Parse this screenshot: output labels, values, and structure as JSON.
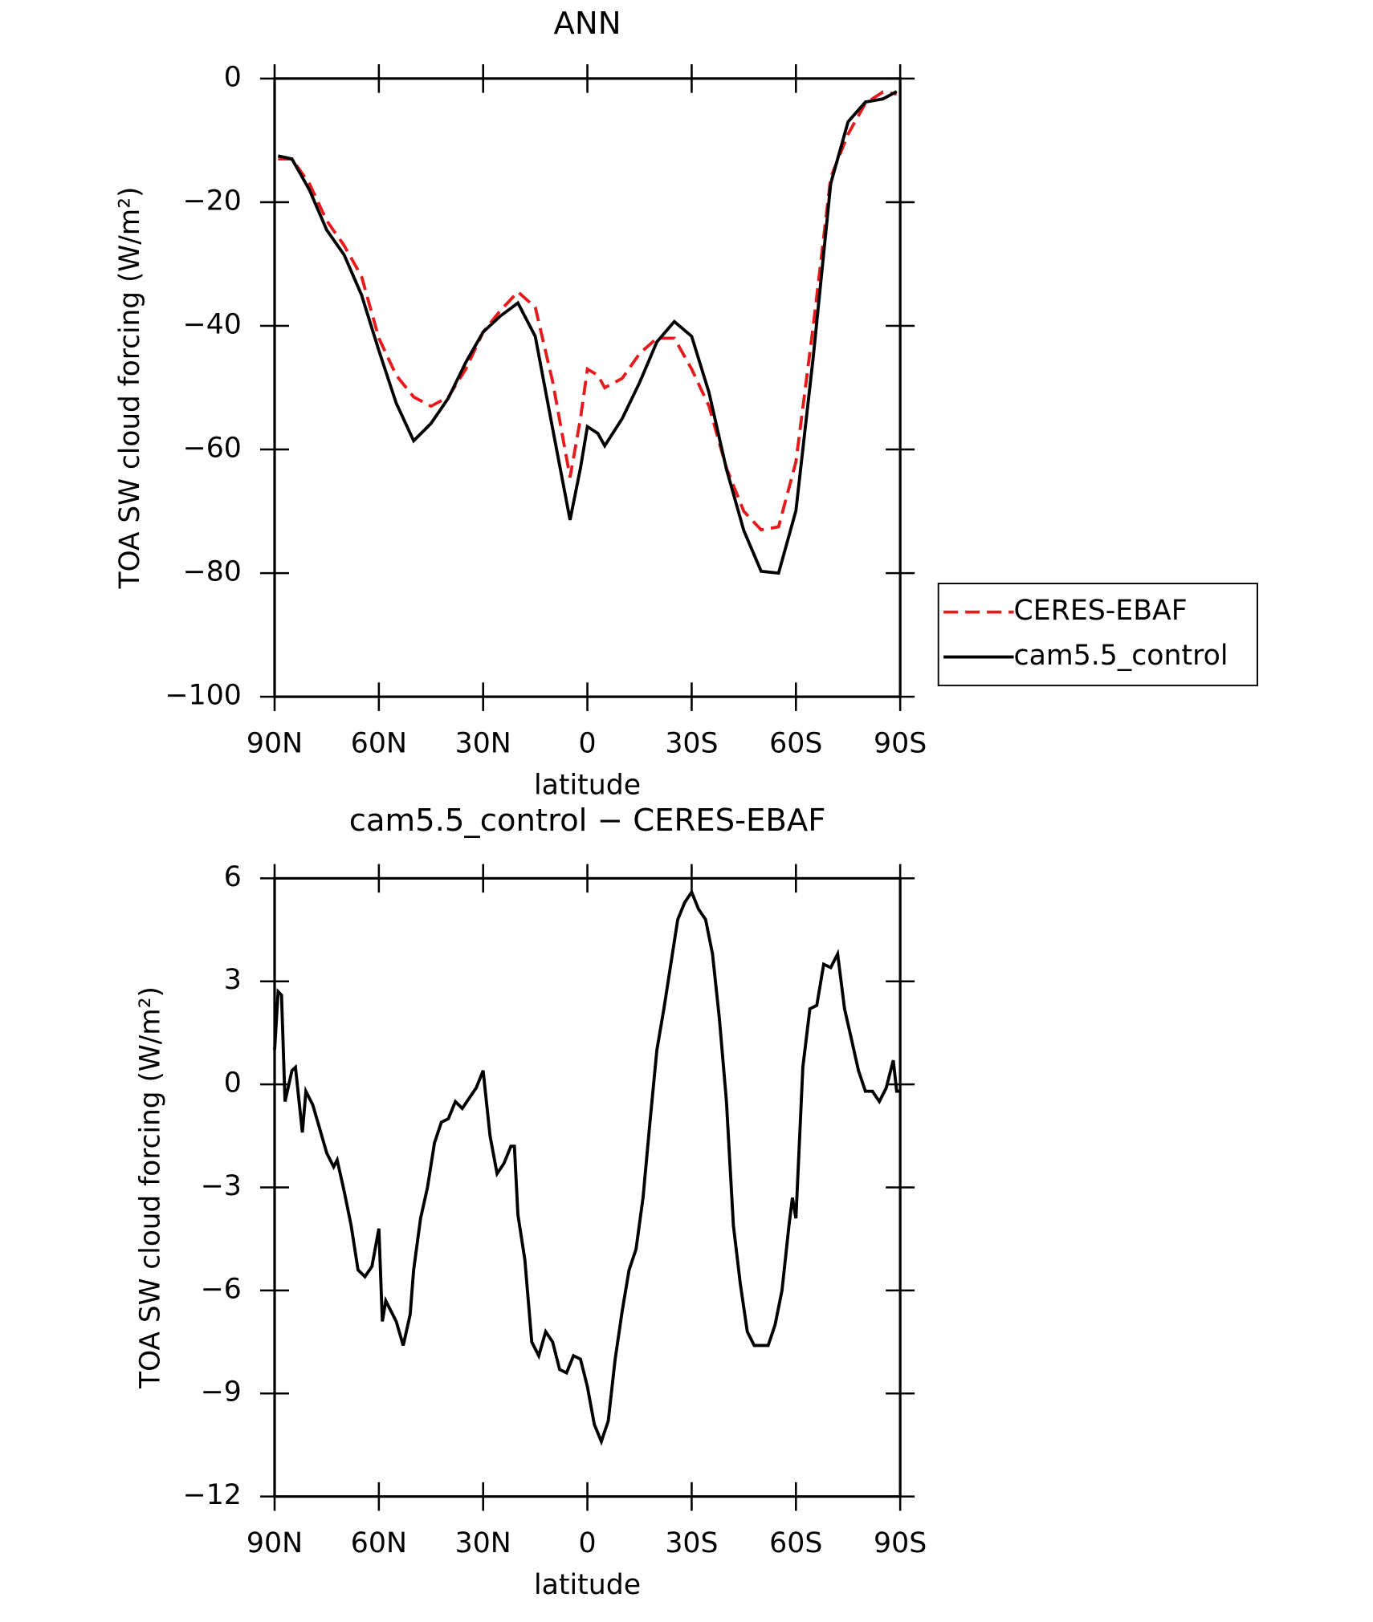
{
  "chart_data": [
    {
      "type": "line",
      "title": "ANN",
      "xlabel": "latitude",
      "ylabel": "TOA SW cloud forcing (W/m²)",
      "xlim": [
        90,
        -90
      ],
      "xticks": [
        {
          "value": 90,
          "label": "90N"
        },
        {
          "value": 60,
          "label": "60N"
        },
        {
          "value": 30,
          "label": "30N"
        },
        0,
        {
          "value": -30,
          "label": "30S"
        },
        {
          "value": -60,
          "label": "60S"
        },
        {
          "value": -90,
          "label": "90S"
        }
      ],
      "ylim": [
        -100,
        0
      ],
      "yticks": [
        {
          "value": -100,
          "label": "−100"
        },
        {
          "value": -80,
          "label": "−80"
        },
        {
          "value": -60,
          "label": "−60"
        },
        {
          "value": -40,
          "label": "−40"
        },
        {
          "value": -20,
          "label": "−20"
        },
        0
      ],
      "legend": "right",
      "x": [
        89,
        85,
        80,
        75,
        70,
        65,
        60,
        55,
        50,
        45,
        40,
        35,
        30,
        25,
        20,
        15,
        10,
        5,
        2,
        0,
        -3,
        -5,
        -10,
        -15,
        -20,
        -25,
        -30,
        -35,
        -40,
        -45,
        -50,
        -55,
        -60,
        -65,
        -70,
        -75,
        -80,
        -85,
        -89
      ],
      "series": [
        {
          "name": "CERES-EBAF",
          "color": "#e8191b",
          "dash": "dashed",
          "values": [
            -13,
            -13,
            -17,
            -23,
            -27,
            -32,
            -42,
            -48,
            -51.5,
            -53,
            -51.5,
            -47,
            -41,
            -37.5,
            -34.5,
            -37,
            -49,
            -64.5,
            -55,
            -47,
            -48,
            -50,
            -48.5,
            -44.5,
            -42,
            -42,
            -47,
            -53,
            -63,
            -70,
            -73,
            -72.5,
            -62,
            -40,
            -16,
            -9,
            -4,
            -2.2,
            -2.5
          ]
        },
        {
          "name": "cam5.5_control",
          "color": "#000000",
          "dash": "solid",
          "values": [
            -12.5,
            -13,
            -18,
            -24.5,
            -28.5,
            -35,
            -44,
            -52.5,
            -58.6,
            -55.8,
            -51.7,
            -45.9,
            -41,
            -38.4,
            -36.3,
            -41.7,
            -56.6,
            -71.4,
            -63,
            -56.3,
            -57.4,
            -59.4,
            -55,
            -49.2,
            -42.6,
            -39.3,
            -41.7,
            -50.8,
            -63.2,
            -73.1,
            -79.7,
            -80,
            -69.9,
            -45,
            -17,
            -7,
            -3.8,
            -3.3,
            -2.1
          ]
        }
      ]
    },
    {
      "type": "line",
      "title": "cam5.5_control − CERES-EBAF",
      "xlabel": "latitude",
      "ylabel": "TOA SW cloud forcing (W/m²)",
      "xlim": [
        90,
        -90
      ],
      "xticks": [
        {
          "value": 90,
          "label": "90N"
        },
        {
          "value": 60,
          "label": "60N"
        },
        {
          "value": 30,
          "label": "30N"
        },
        0,
        {
          "value": -30,
          "label": "30S"
        },
        {
          "value": -60,
          "label": "60S"
        },
        {
          "value": -90,
          "label": "90S"
        }
      ],
      "ylim": [
        -12,
        6
      ],
      "yticks": [
        {
          "value": -12,
          "label": "−12"
        },
        {
          "value": -9,
          "label": "−9"
        },
        {
          "value": -6,
          "label": "−6"
        },
        {
          "value": -3,
          "label": "−3"
        },
        0,
        3,
        6
      ],
      "x": [
        90,
        89,
        88,
        87,
        85,
        84,
        82,
        81,
        79,
        77,
        75,
        73,
        72,
        70,
        68,
        66,
        64,
        62,
        60,
        59,
        58,
        55,
        53,
        51,
        50,
        48,
        46,
        44,
        42,
        40,
        38,
        36,
        34,
        32,
        30,
        28,
        26,
        24,
        22,
        21,
        20,
        18,
        16,
        14,
        12,
        10,
        8,
        6,
        4,
        2,
        0,
        -2,
        -4,
        -6,
        -8,
        -10,
        -12,
        -14,
        -16,
        -18,
        -20,
        -22,
        -24,
        -26,
        -28,
        -30,
        -32,
        -34,
        -36,
        -38,
        -40,
        -42,
        -44,
        -46,
        -48,
        -50,
        -52,
        -54,
        -56,
        -58,
        -59,
        -60,
        -62,
        -64,
        -66,
        -68,
        -70,
        -72,
        -74,
        -76,
        -78,
        -80,
        -82,
        -84,
        -86,
        -88,
        -89,
        -90
      ],
      "series": [
        {
          "color": "#000000",
          "dash": "solid",
          "values": [
            1.0,
            2.7,
            2.6,
            -0.5,
            0.4,
            0.5,
            -1.4,
            -0.2,
            -0.6,
            -1.3,
            -2.0,
            -2.4,
            -2.2,
            -3.1,
            -4.1,
            -5.4,
            -5.6,
            -5.3,
            -4.2,
            -6.9,
            -6.3,
            -6.9,
            -7.6,
            -6.7,
            -5.4,
            -3.9,
            -3.0,
            -1.7,
            -1.1,
            -1.0,
            -0.5,
            -0.7,
            -0.4,
            -0.1,
            0.4,
            -1.5,
            -2.6,
            -2.3,
            -1.8,
            -1.8,
            -3.8,
            -5.1,
            -7.5,
            -7.9,
            -7.2,
            -7.5,
            -8.3,
            -8.4,
            -7.9,
            -8.0,
            -8.8,
            -9.9,
            -10.4,
            -9.8,
            -8.0,
            -6.6,
            -5.4,
            -4.8,
            -3.3,
            -1.1,
            1.0,
            2.2,
            3.5,
            4.8,
            5.3,
            5.6,
            5.1,
            4.8,
            3.8,
            1.9,
            -0.5,
            -4.1,
            -5.8,
            -7.2,
            -7.6,
            -7.6,
            -7.6,
            -7.0,
            -6.0,
            -4.1,
            -3.3,
            -3.9,
            0.5,
            2.2,
            2.3,
            3.5,
            3.4,
            3.8,
            2.2,
            1.3,
            0.4,
            -0.2,
            -0.2,
            -0.5,
            -0.1,
            0.7,
            -0.2,
            -0.2
          ]
        }
      ]
    }
  ]
}
